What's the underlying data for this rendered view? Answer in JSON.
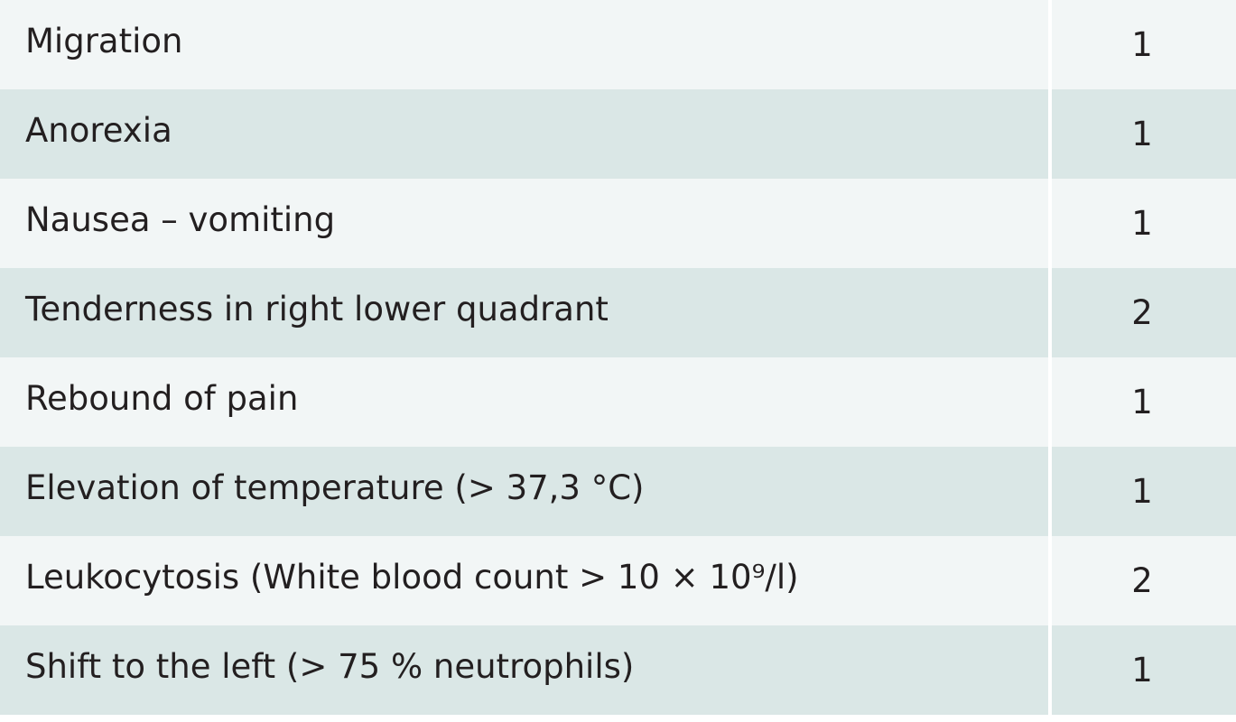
{
  "table": {
    "rows": [
      [
        "Migration",
        1
      ],
      [
        "Anorexia",
        1
      ],
      [
        "Nausea – vomiting",
        1
      ],
      [
        "Tenderness in right lower quadrant",
        2
      ],
      [
        "Rebound of pain",
        1
      ],
      [
        "Elevation of temperature (> 37,3 °C)",
        1
      ],
      [
        "Leukocytosis (White blood count > 10 × 10⁹/l)",
        2
      ],
      [
        "Shift to the left (> 75 % neutrophils)",
        1
      ]
    ]
  }
}
